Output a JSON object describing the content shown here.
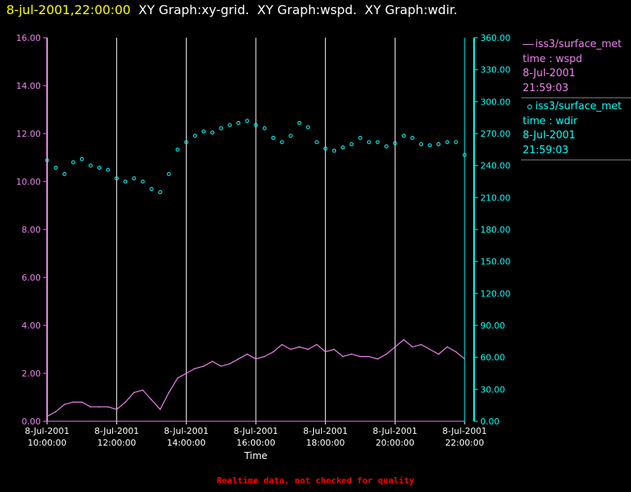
{
  "header": {
    "timestamp": "8-jul-2001,22:00:00",
    "graphs": [
      "XY Graph:xy-grid.",
      "XY Graph:wspd.",
      "XY Graph:wdir."
    ]
  },
  "legend": [
    {
      "symbol": "line",
      "name": "iss3/surface_met",
      "var": "time : wspd",
      "date": "8-Jul-2001",
      "time": "21:59:03",
      "color": "#ee82ee"
    },
    {
      "symbol": "circle",
      "name": "iss3/surface_met",
      "var": "time : wdir",
      "date": "8-Jul-2001",
      "time": "21:59:03",
      "color": "#00ffff"
    }
  ],
  "footer": "Realtime data, not checked for quality",
  "colors": {
    "wspd": "#ee82ee",
    "wdir": "#00ffff",
    "grid": "#ffffff",
    "background": "#000000",
    "header_time": "#ffff00",
    "footer": "#ff0000"
  },
  "chart_data": {
    "type": "line",
    "xlabel": "Time",
    "x_ticks": [
      {
        "date": "8-Jul-2001",
        "time": "10:00:00"
      },
      {
        "date": "8-Jul-2001",
        "time": "12:00:00"
      },
      {
        "date": "8-Jul-2001",
        "time": "14:00:00"
      },
      {
        "date": "8-Jul-2001",
        "time": "16:00:00"
      },
      {
        "date": "8-Jul-2001",
        "time": "18:00:00"
      },
      {
        "date": "8-Jul-2001",
        "time": "20:00:00"
      },
      {
        "date": "8-Jul-2001",
        "time": "22:00:00"
      }
    ],
    "xlim": [
      "10:00",
      "22:00"
    ],
    "grid": "vertical lines at each x tick",
    "y_left": {
      "lim": [
        0,
        16
      ],
      "ticks": [
        "0.00",
        "2.00",
        "4.00",
        "6.00",
        "8.00",
        "10.00",
        "12.00",
        "14.00",
        "16.00"
      ],
      "color": "#ee82ee"
    },
    "y_right": {
      "lim": [
        0,
        360
      ],
      "ticks": [
        "0.00",
        "30.00",
        "60.00",
        "90.00",
        "120.00",
        "150.00",
        "180.00",
        "210.00",
        "240.00",
        "270.00",
        "300.00",
        "330.00",
        "360.00"
      ],
      "color": "#00ffff"
    },
    "series": [
      {
        "name": "iss3/surface_met time : wspd",
        "axis": "left",
        "style": "line",
        "x": [
          "10:00",
          "10:15",
          "10:30",
          "10:45",
          "11:00",
          "11:15",
          "11:30",
          "11:45",
          "12:00",
          "12:15",
          "12:30",
          "12:45",
          "13:00",
          "13:15",
          "13:30",
          "13:45",
          "14:00",
          "14:15",
          "14:30",
          "14:45",
          "15:00",
          "15:15",
          "15:30",
          "15:45",
          "16:00",
          "16:15",
          "16:30",
          "16:45",
          "17:00",
          "17:15",
          "17:30",
          "17:45",
          "18:00",
          "18:15",
          "18:30",
          "18:45",
          "19:00",
          "19:15",
          "19:30",
          "19:45",
          "20:00",
          "20:15",
          "20:30",
          "20:45",
          "21:00",
          "21:15",
          "21:30",
          "21:45",
          "22:00"
        ],
        "y": [
          0.2,
          0.4,
          0.7,
          0.8,
          0.8,
          0.6,
          0.6,
          0.6,
          0.5,
          0.8,
          1.2,
          1.3,
          0.9,
          0.5,
          1.2,
          1.8,
          2.0,
          2.2,
          2.3,
          2.5,
          2.3,
          2.4,
          2.6,
          2.8,
          2.6,
          2.7,
          2.9,
          3.2,
          3.0,
          3.1,
          3.0,
          3.2,
          2.9,
          3.0,
          2.7,
          2.8,
          2.7,
          2.7,
          2.6,
          2.8,
          3.1,
          3.4,
          3.1,
          3.2,
          3.0,
          2.8,
          3.1,
          2.9,
          2.6
        ]
      },
      {
        "name": "iss3/surface_met time : wdir",
        "axis": "right",
        "style": "circles",
        "x": [
          "10:00",
          "10:15",
          "10:30",
          "10:45",
          "11:00",
          "11:15",
          "11:30",
          "11:45",
          "12:00",
          "12:15",
          "12:30",
          "12:45",
          "13:00",
          "13:15",
          "13:30",
          "13:45",
          "14:00",
          "14:15",
          "14:30",
          "14:45",
          "15:00",
          "15:15",
          "15:30",
          "15:45",
          "16:00",
          "16:15",
          "16:30",
          "16:45",
          "17:00",
          "17:15",
          "17:30",
          "17:45",
          "18:00",
          "18:15",
          "18:30",
          "18:45",
          "19:00",
          "19:15",
          "19:30",
          "19:45",
          "20:00",
          "20:15",
          "20:30",
          "20:45",
          "21:00",
          "21:15",
          "21:30",
          "21:45",
          "22:00"
        ],
        "y": [
          245,
          238,
          232,
          243,
          246,
          240,
          238,
          236,
          228,
          225,
          228,
          225,
          218,
          215,
          232,
          255,
          262,
          268,
          272,
          271,
          275,
          278,
          280,
          282,
          278,
          275,
          266,
          262,
          268,
          280,
          276,
          262,
          256,
          254,
          257,
          260,
          266,
          262,
          262,
          258,
          261,
          268,
          266,
          260,
          259,
          260,
          262,
          262,
          250
        ]
      }
    ]
  }
}
